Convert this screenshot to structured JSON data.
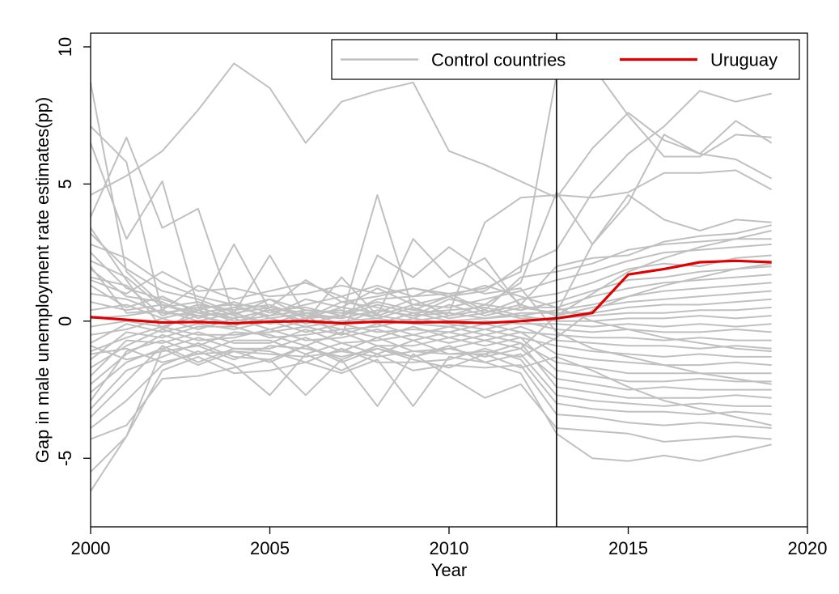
{
  "chart_data": {
    "type": "line",
    "xlabel": "Year",
    "ylabel": "Gap in male unemployment rate estimates(pp)",
    "xlim": [
      2000,
      2020
    ],
    "ylim": [
      -7.5,
      10.5
    ],
    "x_ticks": [
      2000,
      2005,
      2010,
      2015,
      2020
    ],
    "y_ticks": [
      -5,
      0,
      5,
      10
    ],
    "grid": false,
    "legend_position": "top-right",
    "treatment_year": 2013,
    "colors": {
      "control": "#c0c0c0",
      "treated": "#e00000",
      "reference_line": "#000000"
    },
    "legend": {
      "control_label": "Control countries",
      "treated_label": "Uruguay"
    },
    "x": [
      2000,
      2001,
      2002,
      2003,
      2004,
      2005,
      2006,
      2007,
      2008,
      2009,
      2010,
      2011,
      2012,
      2013,
      2014,
      2015,
      2016,
      2017,
      2018,
      2019
    ],
    "series": [
      {
        "name": "Uruguay",
        "values": [
          0.15,
          0.05,
          -0.05,
          -0.03,
          -0.08,
          -0.02,
          0.0,
          -0.08,
          -0.02,
          -0.05,
          -0.03,
          -0.07,
          0.0,
          0.1,
          0.3,
          1.7,
          1.9,
          2.15,
          2.2,
          2.15
        ]
      }
    ],
    "control_series": [
      [
        4.6,
        5.3,
        6.2,
        7.7,
        9.4,
        8.5,
        6.5,
        8.0,
        8.4,
        8.7,
        6.2,
        5.7,
        5.1,
        4.5,
        6.3,
        7.6,
        6.6,
        6.1,
        5.9,
        5.2
      ],
      [
        8.7,
        1.8,
        0.6,
        0.3,
        0.5,
        0.8,
        0.1,
        0.5,
        1.2,
        0.6,
        0.9,
        1.1,
        2.0,
        2.6,
        4.7,
        6.1,
        7.1,
        8.4,
        8.0,
        8.3
      ],
      [
        7.1,
        5.8,
        0.3,
        0.2,
        -0.2,
        0.5,
        0.3,
        -0.1,
        0.4,
        0.2,
        0.8,
        0.6,
        1.4,
        4.7,
        2.8,
        4.3,
        6.8,
        6.1,
        7.3,
        6.5
      ],
      [
        6.5,
        3.0,
        5.1,
        0.5,
        0.1,
        0.4,
        -0.1,
        0.2,
        0.8,
        0.9,
        1.0,
        1.2,
        1.8,
        9.0,
        9.3,
        7.5,
        6.0,
        6.0,
        6.8,
        6.7
      ],
      [
        3.8,
        6.7,
        3.4,
        4.1,
        0.2,
        -0.1,
        0.3,
        0.1,
        4.6,
        0.4,
        0.3,
        3.6,
        4.5,
        4.6,
        4.5,
        4.7,
        5.4,
        5.4,
        5.5,
        4.8
      ],
      [
        3.4,
        1.5,
        -0.3,
        0.4,
        2.8,
        0.4,
        0.0,
        1.6,
        0.2,
        3.0,
        1.6,
        2.3,
        0.5,
        0.3,
        2.8,
        4.6,
        3.7,
        3.3,
        3.7,
        3.6
      ],
      [
        3.2,
        1.9,
        1.1,
        0.8,
        0.3,
        2.4,
        0.2,
        -0.5,
        2.4,
        1.6,
        2.7,
        1.8,
        0.6,
        2.0,
        2.3,
        2.4,
        2.9,
        3.1,
        3.2,
        3.5
      ],
      [
        2.8,
        2.3,
        1.4,
        0.9,
        0.6,
        0.5,
        1.5,
        0.7,
        0.9,
        1.2,
        1.0,
        0.4,
        1.6,
        1.8,
        2.1,
        2.6,
        2.8,
        2.9,
        3.0,
        3.0
      ],
      [
        2.5,
        1.2,
        0.8,
        0.4,
        0.7,
        0.3,
        0.6,
        0.9,
        0.2,
        0.6,
        0.5,
        0.8,
        1.1,
        1.5,
        1.8,
        2.2,
        2.5,
        2.6,
        2.7,
        2.8
      ],
      [
        2.2,
        1.6,
        0.5,
        0.7,
        0.2,
        0.8,
        0.4,
        0.3,
        0.7,
        0.4,
        0.9,
        0.3,
        0.8,
        1.0,
        1.4,
        1.9,
        2.1,
        2.0,
        2.3,
        2.4
      ],
      [
        1.9,
        0.9,
        0.7,
        0.1,
        0.5,
        0.2,
        0.8,
        0.5,
        0.3,
        0.8,
        0.2,
        0.6,
        0.4,
        0.7,
        1.1,
        1.5,
        1.6,
        1.8,
        1.9,
        2.0
      ],
      [
        1.6,
        1.3,
        0.2,
        0.6,
        0.4,
        0.6,
        0.1,
        0.7,
        0.5,
        0.1,
        0.6,
        0.2,
        0.5,
        0.5,
        0.9,
        1.2,
        1.4,
        1.5,
        1.6,
        1.7
      ],
      [
        1.3,
        0.5,
        0.9,
        0.3,
        0.1,
        0.4,
        0.5,
        0.2,
        0.6,
        0.3,
        0.4,
        0.5,
        0.2,
        0.4,
        0.6,
        0.9,
        1.1,
        1.2,
        1.3,
        1.4
      ],
      [
        1.0,
        0.8,
        0.3,
        0.5,
        0.6,
        0.1,
        0.3,
        0.4,
        0.1,
        0.5,
        0.1,
        0.3,
        0.6,
        0.2,
        0.5,
        0.7,
        0.8,
        0.9,
        1.0,
        1.1
      ],
      [
        0.7,
        0.4,
        0.6,
        0.2,
        0.3,
        0.5,
        0.2,
        0.1,
        0.4,
        0.2,
        0.3,
        0.1,
        0.3,
        0.3,
        0.3,
        0.5,
        0.6,
        0.6,
        0.7,
        0.8
      ],
      [
        0.4,
        0.6,
        0.1,
        0.4,
        0.0,
        0.2,
        0.4,
        0.3,
        0.2,
        0.0,
        0.2,
        0.4,
        0.1,
        0.1,
        0.2,
        0.3,
        0.3,
        0.4,
        0.4,
        0.5
      ],
      [
        0.1,
        0.2,
        0.4,
        0.0,
        0.3,
        -0.1,
        0.1,
        0.2,
        -0.1,
        0.3,
        0.0,
        0.1,
        0.2,
        0.0,
        0.0,
        0.1,
        0.1,
        0.2,
        0.1,
        0.2
      ],
      [
        -0.2,
        0.0,
        -0.2,
        0.2,
        -0.1,
        0.1,
        -0.2,
        0.0,
        0.1,
        -0.1,
        -0.2,
        0.0,
        -0.1,
        -0.1,
        -0.2,
        -0.1,
        -0.2,
        -0.1,
        -0.2,
        -0.1
      ],
      [
        -0.5,
        -0.3,
        0.1,
        -0.3,
        0.1,
        -0.3,
        0.0,
        -0.3,
        -0.2,
        0.1,
        -0.1,
        -0.3,
        0.0,
        -0.3,
        -0.4,
        -0.3,
        -0.4,
        -0.4,
        -0.3,
        -0.4
      ],
      [
        -0.8,
        -0.1,
        -0.4,
        -0.1,
        -0.3,
        0.0,
        -0.4,
        -0.1,
        -0.4,
        -0.3,
        -0.4,
        -0.1,
        -0.4,
        -0.5,
        -0.6,
        -0.6,
        -0.7,
        -0.6,
        -0.7,
        -0.7
      ],
      [
        -1.1,
        -0.6,
        -0.2,
        -0.5,
        -0.5,
        -0.4,
        -0.2,
        -0.5,
        -0.1,
        -0.5,
        -0.2,
        -0.5,
        -0.2,
        -0.7,
        -0.8,
        -0.9,
        -0.9,
        -1.0,
        -0.9,
        -1.0
      ],
      [
        -1.4,
        -0.4,
        -0.6,
        -0.2,
        -0.2,
        -0.6,
        -0.5,
        -0.3,
        -0.6,
        -0.2,
        -0.6,
        -0.3,
        -0.6,
        -0.9,
        -1.1,
        -1.2,
        -1.3,
        -1.2,
        -1.3,
        -1.3
      ],
      [
        -1.7,
        -0.9,
        -0.3,
        -0.7,
        -0.6,
        -0.3,
        -0.7,
        -0.6,
        -0.3,
        -0.7,
        -0.4,
        -0.7,
        -0.4,
        -1.2,
        -1.4,
        -1.5,
        -1.6,
        -1.6,
        -1.5,
        -1.6
      ],
      [
        -2.0,
        -0.7,
        -0.8,
        -0.4,
        -0.8,
        -0.8,
        -0.3,
        -0.8,
        -0.7,
        -0.5,
        -0.8,
        -0.5,
        -0.8,
        -1.5,
        -1.7,
        -1.9,
        -1.9,
        -1.9,
        -1.9,
        -1.9
      ],
      [
        -2.3,
        -1.2,
        -0.5,
        -0.9,
        -0.4,
        -0.5,
        -0.9,
        -0.4,
        -0.9,
        -0.9,
        -0.6,
        -0.9,
        -0.6,
        -1.8,
        -2.0,
        -2.2,
        -2.2,
        -2.1,
        -2.2,
        -2.2
      ],
      [
        -2.6,
        -1.5,
        -1.0,
        -0.6,
        -1.0,
        -1.0,
        -0.6,
        -1.1,
        -0.6,
        -1.1,
        -1.0,
        -0.7,
        -1.0,
        -2.1,
        -2.3,
        -2.5,
        -2.4,
        -2.5,
        -2.5,
        -2.5
      ],
      [
        -2.9,
        -1.1,
        -0.7,
        -1.2,
        -0.7,
        -0.7,
        -1.2,
        -0.8,
        -1.2,
        -0.7,
        -1.2,
        -1.2,
        -0.8,
        -2.4,
        -2.6,
        -2.8,
        -2.8,
        -2.8,
        -2.7,
        -2.8
      ],
      [
        -3.2,
        -1.8,
        -1.3,
        -0.8,
        -1.3,
        -1.4,
        -0.9,
        -1.4,
        -0.9,
        -1.3,
        -0.9,
        -1.5,
        -1.2,
        -2.7,
        -2.9,
        -3.0,
        -3.1,
        -3.0,
        -3.1,
        -3.1
      ],
      [
        -3.5,
        -2.2,
        -0.9,
        -1.5,
        -1.0,
        -1.1,
        -1.5,
        -1.0,
        -1.5,
        -1.5,
        -1.4,
        -1.0,
        -1.4,
        -3.0,
        -3.2,
        -3.3,
        -3.3,
        -3.4,
        -3.3,
        -3.4
      ],
      [
        -3.9,
        -2.9,
        -1.6,
        -1.1,
        -1.6,
        -2.7,
        -1.2,
        -1.8,
        -1.2,
        -1.8,
        -1.6,
        -1.7,
        -1.6,
        -3.4,
        -3.5,
        -3.7,
        -3.8,
        -3.7,
        -3.8,
        -3.9
      ],
      [
        -4.3,
        -3.8,
        -2.1,
        -2.0,
        -1.7,
        -1.4,
        -2.7,
        -1.4,
        -3.1,
        -1.2,
        -2.0,
        -2.8,
        -2.3,
        -3.9,
        -4.0,
        -4.1,
        -4.4,
        -4.3,
        -4.2,
        -4.3
      ],
      [
        -5.5,
        -4.2,
        -1.8,
        -1.3,
        -1.9,
        -1.8,
        -1.5,
        -1.9,
        -1.4,
        -3.1,
        -1.3,
        -1.5,
        -1.9,
        -4.1,
        -5.0,
        -5.1,
        -4.9,
        -5.1,
        -4.8,
        -4.5
      ],
      [
        -6.2,
        -4.2,
        -1.0,
        -1.6,
        -1.1,
        -1.5,
        -0.9,
        -1.5,
        -1.0,
        -1.4,
        -1.7,
        -1.2,
        -1.7,
        -1.3,
        -1.8,
        -2.4,
        -2.9,
        -3.2,
        -3.5,
        -3.8
      ],
      [
        2.0,
        0.3,
        0.4,
        1.3,
        0.8,
        1.1,
        1.4,
        0.9,
        1.3,
        0.9,
        1.4,
        1.0,
        1.2,
        -0.4,
        -1.0,
        -1.3,
        -1.6,
        -1.9,
        -2.1,
        -2.3
      ],
      [
        1.5,
        1.0,
        1.8,
        1.1,
        1.2,
        0.9,
        1.0,
        1.3,
        1.0,
        1.2,
        0.9,
        1.3,
        0.9,
        0.5,
        0.0,
        -0.3,
        -0.6,
        -0.8,
        -1.0,
        -1.1
      ],
      [
        -1.2,
        -1.0,
        -1.5,
        -1.2,
        -1.1,
        -1.2,
        -1.3,
        -1.1,
        -1.3,
        -1.1,
        -1.2,
        -1.1,
        -1.3,
        -0.6,
        0.4,
        0.9,
        1.3,
        1.6,
        1.9,
        2.1
      ],
      [
        -0.9,
        -1.4,
        -1.1,
        -0.9,
        -1.4,
        -0.9,
        -1.0,
        -1.3,
        -1.0,
        -1.3,
        -1.0,
        -1.3,
        -1.0,
        0.2,
        1.0,
        1.8,
        2.3,
        2.7,
        3.0,
        3.3
      ]
    ]
  }
}
